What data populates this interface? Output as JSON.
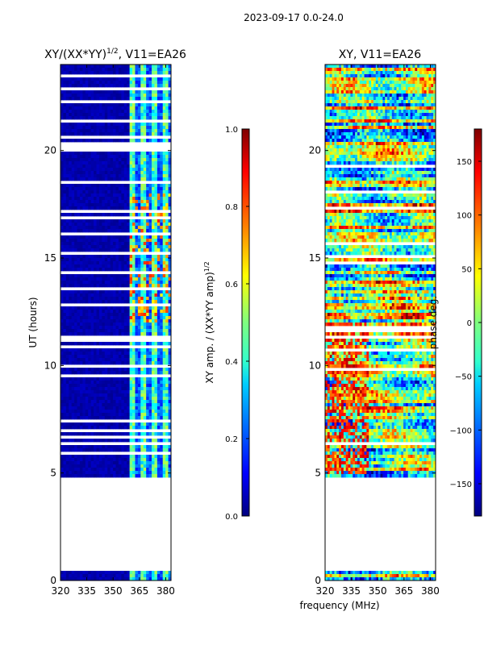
{
  "suptitle": "2023-09-17 0.0-24.0",
  "common_xlabel": "frequency (MHz)",
  "colors": {
    "jet": [
      "#00007f",
      "#0000ff",
      "#007fff",
      "#00ffff",
      "#7fff7f",
      "#ffff00",
      "#ff7f00",
      "#ff0000",
      "#7f0000"
    ]
  },
  "chart_data": [
    {
      "type": "heatmap",
      "title": "XY/(XX*YY)",
      "title_superscript": "1/2",
      "title_suffix": ", V11=EA26",
      "xlabel": "",
      "ylabel": "UT (hours)",
      "xlim": [
        320,
        383
      ],
      "ylim": [
        0,
        24
      ],
      "xticks": [
        "320",
        "335",
        "350",
        "365",
        "380"
      ],
      "xtick_values": [
        320,
        335,
        350,
        365,
        380
      ],
      "yticks": [
        "0",
        "5",
        "10",
        "15",
        "20"
      ],
      "ytick_values": [
        0,
        5,
        10,
        15,
        20
      ],
      "colormap": "jet",
      "colorbar": {
        "label": "XY amp. / (XX*YY amp)",
        "label_superscript": "1/2",
        "range": [
          0.0,
          1.0
        ],
        "ticks": [
          "0.0",
          "0.2",
          "0.4",
          "0.6",
          "0.8",
          "1.0"
        ],
        "tick_values": [
          0.0,
          0.2,
          0.4,
          0.6,
          0.8,
          1.0
        ]
      },
      "data_gaps_hours": [
        [
          0.5,
          4.6
        ]
      ],
      "description_bands": "low values below 360 MHz, elevated values 360-383 MHz"
    },
    {
      "type": "heatmap",
      "title": "XY, V11=EA26",
      "xlabel": "",
      "ylabel": "",
      "xlim": [
        320,
        383
      ],
      "ylim": [
        0,
        24
      ],
      "xticks": [
        "320",
        "335",
        "350",
        "365",
        "380"
      ],
      "xtick_values": [
        320,
        335,
        350,
        365,
        380
      ],
      "yticks": [
        "0",
        "5",
        "10",
        "15",
        "20"
      ],
      "ytick_values": [
        0,
        5,
        10,
        15,
        20
      ],
      "colormap": "jet",
      "colorbar": {
        "label": "phase deg.",
        "range": [
          -180,
          180
        ],
        "ticks": [
          "−150",
          "−100",
          "−50",
          "0",
          "50",
          "100",
          "150"
        ],
        "tick_values": [
          -150,
          -100,
          -50,
          0,
          50,
          100,
          150
        ]
      },
      "data_gaps_hours": [
        [
          0.5,
          4.6
        ]
      ]
    }
  ]
}
